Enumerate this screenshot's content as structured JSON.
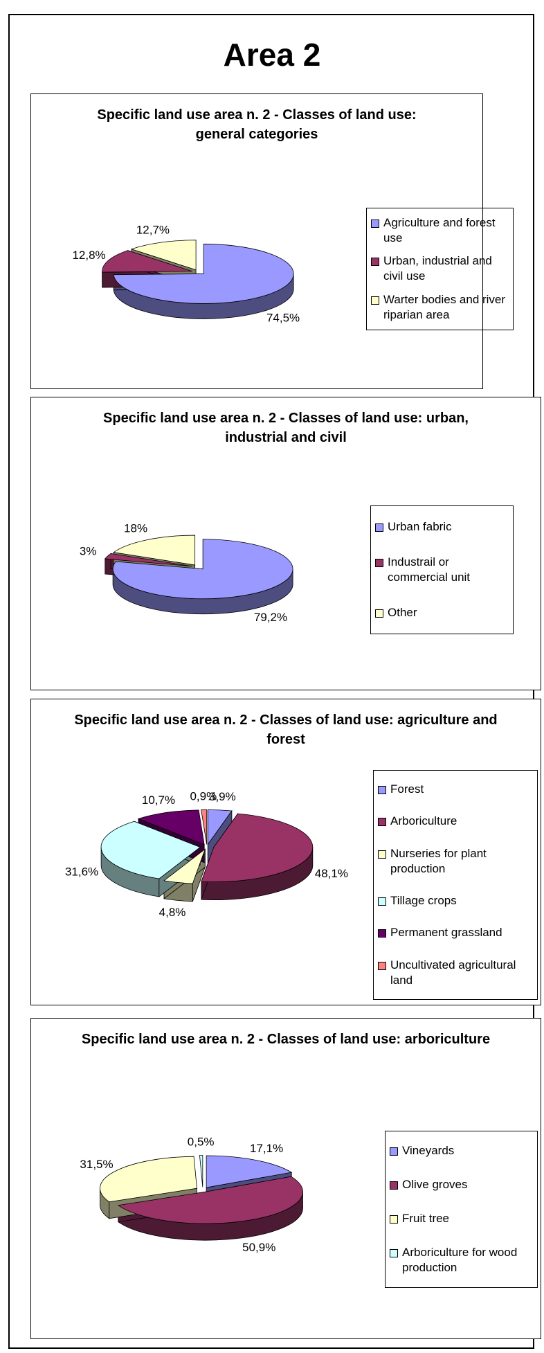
{
  "title": "Area 2",
  "chart_data": [
    {
      "type": "pie",
      "title": "Specific land use area n. 2 - Classes of land use: general categories",
      "categories": [
        "Agriculture and forest use",
        "Urban, industrial and civil use",
        "Warter bodies and river riparian area"
      ],
      "values": [
        74.5,
        12.8,
        12.7
      ],
      "value_labels": [
        "74,5%",
        "12,8%",
        "12,7%"
      ],
      "colors": [
        "#9999ff",
        "#993366",
        "#ffffcc"
      ]
    },
    {
      "type": "pie",
      "title": "Specific land use area n. 2 - Classes of land use: urban, industrial and civil",
      "categories": [
        "Urban fabric",
        "Industrail or commercial unit",
        "Other"
      ],
      "values": [
        79.2,
        3,
        18
      ],
      "value_labels": [
        "79,2%",
        "3%",
        "18%"
      ],
      "colors": [
        "#9999ff",
        "#993366",
        "#ffffcc"
      ]
    },
    {
      "type": "pie",
      "title": "Specific land use area n. 2 - Classes of land use: agriculture and forest",
      "categories": [
        "Forest",
        "Arboriculture",
        "Nurseries for plant production",
        "Tillage crops",
        "Permanent grassland",
        "Uncultivated agricultural land"
      ],
      "values": [
        3.9,
        48.1,
        4.8,
        31.6,
        10.7,
        0.9
      ],
      "value_labels": [
        "3,9%",
        "48,1%",
        "4,8%",
        "31,6%",
        "10,7%",
        "0,9%"
      ],
      "colors": [
        "#9999ff",
        "#993366",
        "#ffffcc",
        "#ccffff",
        "#660066",
        "#ff8080"
      ]
    },
    {
      "type": "pie",
      "title": "Specific land use area n. 2 - Classes of land use: arboriculture",
      "categories": [
        "Vineyards",
        "Olive groves",
        "Fruit tree",
        "Arboriculture for wood production"
      ],
      "values": [
        17.1,
        50.9,
        31.5,
        0.5
      ],
      "value_labels": [
        "17,1%",
        "50,9%",
        "31,5%",
        "0,5%"
      ],
      "colors": [
        "#9999ff",
        "#993366",
        "#ffffcc",
        "#ccffff"
      ]
    }
  ]
}
